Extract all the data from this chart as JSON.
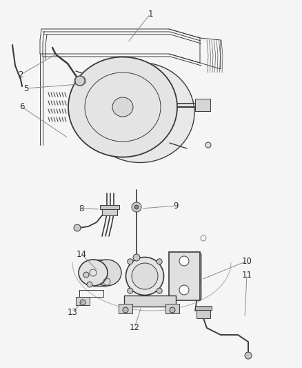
{
  "bg_color": "#f5f5f5",
  "line_color": "#3a3a3a",
  "label_color": "#2a2a2a",
  "label_fontsize": 8.5,
  "fig_w": 4.38,
  "fig_h": 5.33,
  "dpi": 100
}
